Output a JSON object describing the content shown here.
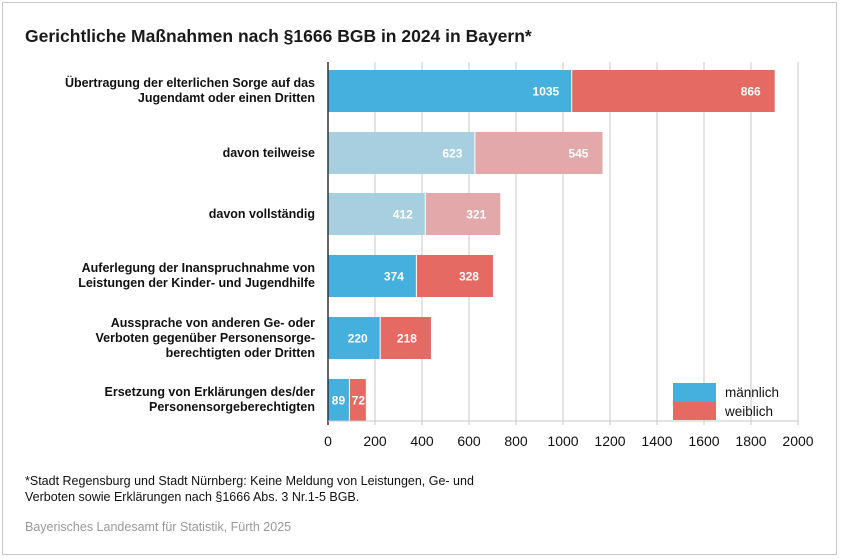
{
  "chart_data": {
    "type": "bar",
    "orientation": "horizontal",
    "stacked": true,
    "title": "Gerichtliche Maßnahmen nach §1666 BGB in 2024 in Bayern*",
    "categories": [
      "Übertragung der elterlichen Sorge auf das Jugendamt oder einen Dritten",
      "davon teilweise",
      "davon vollständig",
      "Auferlegung der Inanspruchnahme von Leistungen der Kinder- und Jugendhilfe",
      "Aussprache von anderen Ge- oder Verboten gegenüber Personensorge-berechtigten oder Dritten",
      "Ersetzung von Erklärungen des/der Personensorgeberechtigten"
    ],
    "category_lines": [
      [
        "Übertragung der elterlichen Sorge auf das",
        "Jugendamt oder einen Dritten"
      ],
      [
        "davon teilweise"
      ],
      [
        "davon vollständig"
      ],
      [
        "Auferlegung der Inanspruchnahme von",
        "Leistungen der Kinder- und Jugendhilfe"
      ],
      [
        "Aussprache von anderen Ge- oder",
        "Verboten gegenüber Personensorge-",
        "berechtigten oder Dritten"
      ],
      [
        "Ersetzung von Erklärungen des/der",
        "Personensorgeberechtigten"
      ]
    ],
    "series": [
      {
        "name": "männlich",
        "values": [
          1035,
          623,
          412,
          374,
          220,
          89
        ]
      },
      {
        "name": "weiblich",
        "values": [
          866,
          545,
          321,
          328,
          218,
          72
        ]
      }
    ],
    "highlight_sub_rows": [
      1,
      2
    ],
    "colors": {
      "male": "#45b0dd",
      "female": "#e46a63",
      "male_light": "#a8cfe0",
      "female_light": "#e2a8aa"
    },
    "xlim": [
      0,
      2000
    ],
    "xticks": [
      0,
      200,
      400,
      600,
      800,
      1000,
      1200,
      1400,
      1600,
      1800,
      2000
    ],
    "xlabel": "",
    "ylabel": "",
    "grid": "vertical",
    "legend": "bottom-right"
  },
  "footnote": [
    "*Stadt Regensburg und Stadt Nürnberg: Keine Meldung von Leistungen, Ge- und",
    "Verboten sowie Erklärungen nach §1666 Abs. 3 Nr.1-5 BGB."
  ],
  "source": "Bayerisches Landesamt für Statistik, Fürth 2025"
}
